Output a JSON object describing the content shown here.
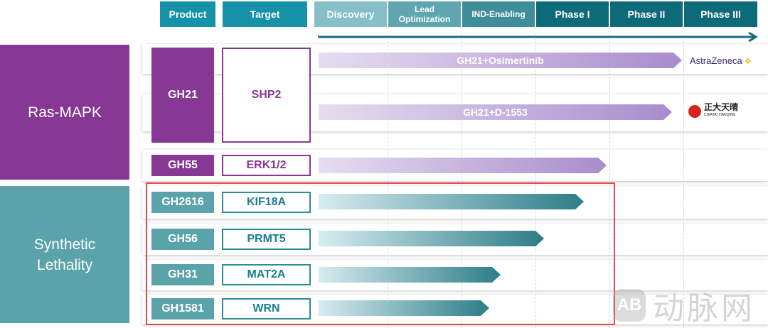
{
  "headers": {
    "product": "Product",
    "target": "Target",
    "stages": [
      "Discovery",
      "Lead Optimization",
      "IND-Enabling",
      "Phase I",
      "Phase II",
      "Phase III"
    ]
  },
  "colors": {
    "purple": "#873895",
    "teal": "#5aa3aa",
    "header_teal": "#1591a8",
    "highlight": "#e84848"
  },
  "categories": [
    {
      "label": "Ras-MAPK"
    },
    {
      "label": "Synthetic Lethality"
    }
  ],
  "programs": [
    {
      "product": "GH21",
      "target": "SHP2",
      "bars": [
        {
          "label": "GH21+Osimertinib",
          "partner": "AstraZeneca"
        },
        {
          "label": "GH21+D-1553",
          "partner": "正大天晴",
          "partner_sub": "CHIATAI TIANQING"
        }
      ]
    },
    {
      "product": "GH55",
      "target": "ERK1/2"
    },
    {
      "product": "GH2616",
      "target": "KIF18A"
    },
    {
      "product": "GH56",
      "target": "PRMT5"
    },
    {
      "product": "GH31",
      "target": "MAT2A"
    },
    {
      "product": "GH1581",
      "target": "WRN"
    }
  ],
  "watermark": "动脉网"
}
